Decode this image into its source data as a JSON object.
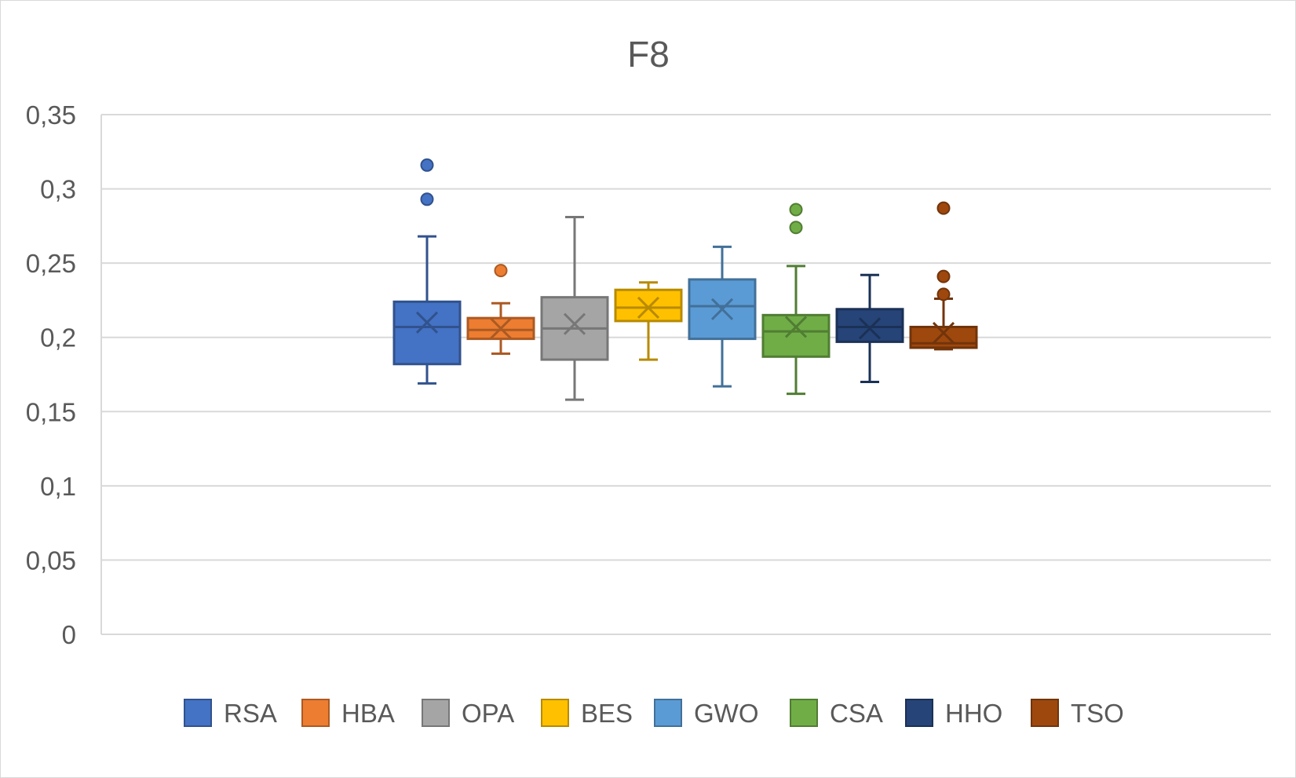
{
  "chart_data": {
    "type": "boxplot",
    "title": "F8",
    "xlabel": "",
    "ylabel": "",
    "ylim": [
      0,
      0.35
    ],
    "y_ticks": [
      {
        "value": 0,
        "label": "0"
      },
      {
        "value": 0.05,
        "label": "0,05"
      },
      {
        "value": 0.1,
        "label": "0,1"
      },
      {
        "value": 0.15,
        "label": "0,15"
      },
      {
        "value": 0.2,
        "label": "0,2"
      },
      {
        "value": 0.25,
        "label": "0,25"
      },
      {
        "value": 0.3,
        "label": "0,3"
      },
      {
        "value": 0.35,
        "label": "0,35"
      }
    ],
    "grid": true,
    "legend_position": "bottom",
    "series": [
      {
        "name": "RSA",
        "color": "#4472C4",
        "min": 0.169,
        "q1": 0.182,
        "median": 0.207,
        "q3": 0.224,
        "max": 0.268,
        "mean": 0.21,
        "outliers": [
          0.293,
          0.316
        ]
      },
      {
        "name": "HBA",
        "color": "#ED7D31",
        "min": 0.189,
        "q1": 0.199,
        "median": 0.205,
        "q3": 0.213,
        "max": 0.223,
        "mean": 0.206,
        "outliers": [
          0.245
        ]
      },
      {
        "name": "OPA",
        "color": "#A5A5A5",
        "min": 0.158,
        "q1": 0.185,
        "median": 0.206,
        "q3": 0.227,
        "max": 0.281,
        "mean": 0.209,
        "outliers": []
      },
      {
        "name": "BES",
        "color": "#FFC000",
        "min": 0.185,
        "q1": 0.211,
        "median": 0.22,
        "q3": 0.232,
        "max": 0.237,
        "mean": 0.22,
        "outliers": []
      },
      {
        "name": "GWO",
        "color": "#5B9BD5",
        "min": 0.167,
        "q1": 0.199,
        "median": 0.221,
        "q3": 0.239,
        "max": 0.261,
        "mean": 0.219,
        "outliers": []
      },
      {
        "name": "CSA",
        "color": "#70AD47",
        "min": 0.162,
        "q1": 0.187,
        "median": 0.204,
        "q3": 0.215,
        "max": 0.248,
        "mean": 0.207,
        "outliers": [
          0.274,
          0.286
        ]
      },
      {
        "name": "HHO",
        "color": "#264478",
        "min": 0.17,
        "q1": 0.197,
        "median": 0.207,
        "q3": 0.219,
        "max": 0.242,
        "mean": 0.206,
        "outliers": []
      },
      {
        "name": "TSO",
        "color": "#9E480E",
        "min": 0.192,
        "q1": 0.193,
        "median": 0.196,
        "q3": 0.207,
        "max": 0.226,
        "mean": 0.203,
        "outliers": [
          0.229,
          0.241,
          0.287
        ]
      }
    ]
  }
}
